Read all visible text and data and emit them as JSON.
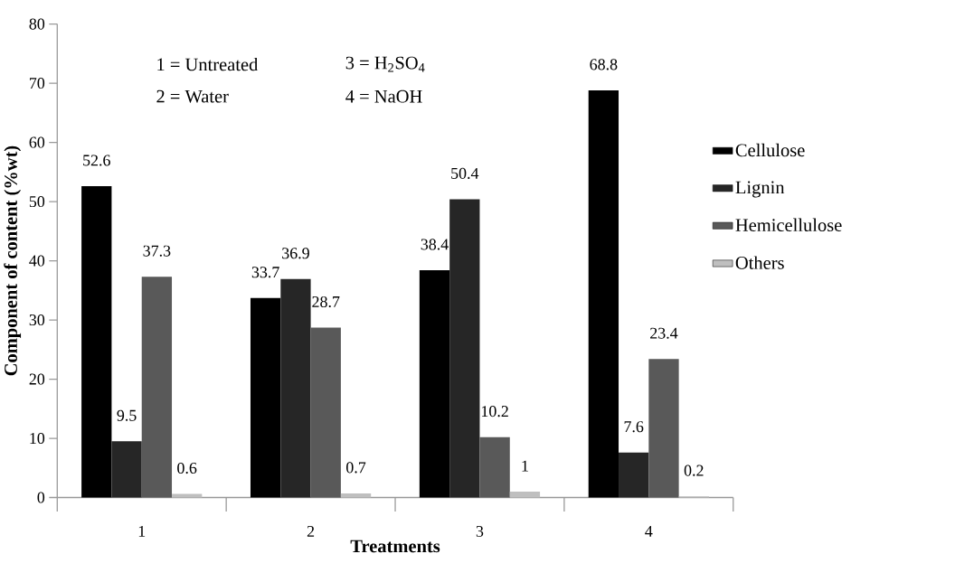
{
  "chart_data": {
    "type": "bar",
    "xlabel": "Treatments",
    "ylabel": "Component of content (%wt)",
    "categories": [
      "1",
      "2",
      "3",
      "4"
    ],
    "series": [
      {
        "name": "Cellulose",
        "color": "#000000",
        "values": [
          52.6,
          33.7,
          38.4,
          68.8
        ]
      },
      {
        "name": "Lignin",
        "color": "#262626",
        "values": [
          9.5,
          36.9,
          50.4,
          7.6
        ]
      },
      {
        "name": "Hemicellulose",
        "color": "#595959",
        "values": [
          37.3,
          28.7,
          10.2,
          23.4
        ]
      },
      {
        "name": "Others",
        "color": "#bfbfbf",
        "values": [
          0.6,
          0.7,
          1,
          0.2
        ]
      }
    ],
    "ylim": [
      0,
      80
    ],
    "yticks": [
      0,
      10,
      20,
      30,
      40,
      50,
      60,
      70,
      80
    ],
    "annotations": [
      "1 = Untreated",
      "3 = H$_{2}$SO$_{4}$",
      "2 = Water",
      "4 = NaOH"
    ],
    "data_labels": true,
    "legend": "right",
    "grid": false
  }
}
